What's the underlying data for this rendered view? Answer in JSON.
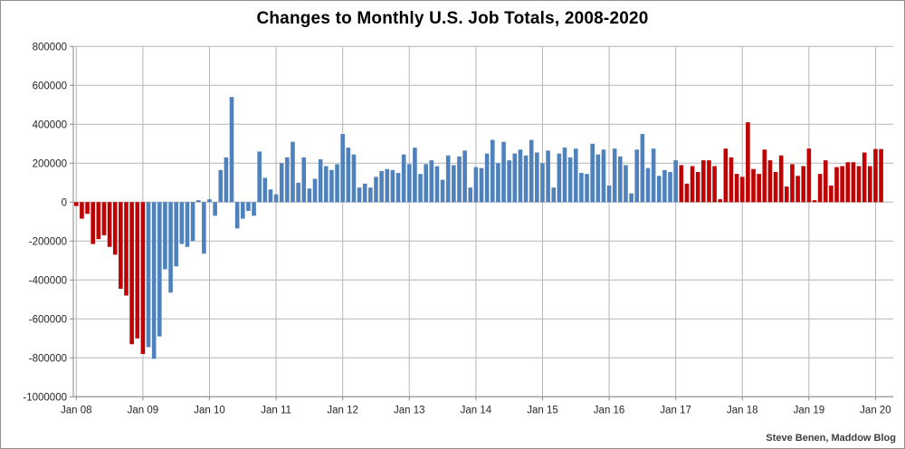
{
  "title": "Changes to Monthly U.S. Job Totals, 2008-2020",
  "credit": "Steve Benen, Maddow Blog",
  "chart_data": {
    "type": "bar",
    "title": "Changes to Monthly U.S. Job Totals, 2008-2020",
    "xlabel": "",
    "ylabel": "",
    "frequency": "monthly",
    "start_month": "Jan 2008",
    "end_month": "Feb 2020",
    "ylim": [
      -1000000,
      800000
    ],
    "grid": true,
    "y_tick_values": [
      800000,
      600000,
      400000,
      200000,
      0,
      -200000,
      -400000,
      -600000,
      -800000,
      -1000000
    ],
    "y_tick_labels": [
      "800000",
      "600000",
      "400000",
      "200000",
      "0",
      "-200000",
      "-400000",
      "-600000",
      "-800000",
      "-1000000"
    ],
    "x_tick_labels": [
      "Jan 08",
      "Jan 09",
      "Jan 10",
      "Jan 11",
      "Jan 12",
      "Jan 13",
      "Jan 14",
      "Jan 15",
      "Jan 16",
      "Jan 17",
      "Jan 18",
      "Jan 19",
      "Jan 20"
    ],
    "x_tick_month_indexes": [
      0,
      12,
      24,
      36,
      48,
      60,
      72,
      84,
      96,
      108,
      120,
      132,
      144
    ],
    "bar_colors": {
      "red": "#C00000",
      "blue": "#4F81BD"
    },
    "color_segments": [
      {
        "start_index": 0,
        "end_index": 12,
        "color": "#C00000"
      },
      {
        "start_index": 13,
        "end_index": 108,
        "color": "#4F81BD"
      },
      {
        "start_index": 109,
        "end_index": 145,
        "color": "#C00000"
      }
    ],
    "values": [
      -20000,
      -85000,
      -60000,
      -215000,
      -190000,
      -170000,
      -230000,
      -270000,
      -445000,
      -480000,
      -730000,
      -700000,
      -780000,
      -745000,
      -805000,
      -690000,
      -345000,
      -465000,
      -330000,
      -215000,
      -230000,
      -200000,
      10000,
      -265000,
      15000,
      -70000,
      165000,
      230000,
      540000,
      -135000,
      -85000,
      -45000,
      -70000,
      260000,
      125000,
      65000,
      40000,
      200000,
      230000,
      310000,
      100000,
      230000,
      70000,
      120000,
      220000,
      185000,
      165000,
      195000,
      350000,
      280000,
      245000,
      75000,
      95000,
      75000,
      130000,
      160000,
      170000,
      165000,
      150000,
      245000,
      195000,
      280000,
      145000,
      195000,
      215000,
      185000,
      115000,
      240000,
      190000,
      235000,
      265000,
      75000,
      180000,
      175000,
      250000,
      320000,
      200000,
      310000,
      215000,
      250000,
      270000,
      240000,
      320000,
      255000,
      200000,
      265000,
      75000,
      250000,
      280000,
      230000,
      275000,
      150000,
      145000,
      300000,
      245000,
      270000,
      85000,
      275000,
      235000,
      190000,
      45000,
      270000,
      350000,
      175000,
      275000,
      135000,
      165000,
      155000,
      215000,
      190000,
      95000,
      185000,
      155000,
      215000,
      215000,
      185000,
      15000,
      275000,
      230000,
      145000,
      130000,
      410000,
      170000,
      145000,
      270000,
      215000,
      155000,
      240000,
      80000,
      195000,
      135000,
      185000,
      275000,
      10000,
      145000,
      215000,
      85000,
      180000,
      185000,
      205000,
      205000,
      185000,
      255000,
      185000,
      273000,
      273000
    ]
  },
  "colors": {
    "gridline": "#b6b6b6",
    "axis": "#8a8a8a",
    "background": "#ffffff"
  }
}
